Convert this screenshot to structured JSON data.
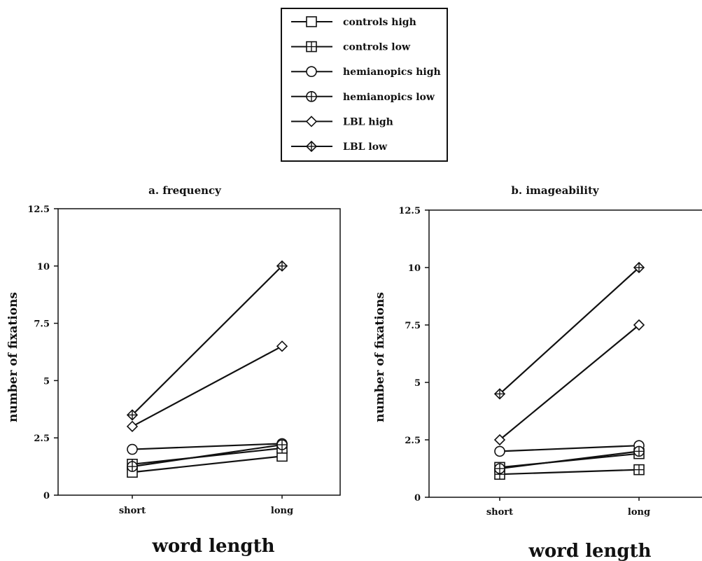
{
  "legend": [
    {
      "label": "controls high",
      "marker": "square",
      "cross": false
    },
    {
      "label": "controls low",
      "marker": "square",
      "cross": true
    },
    {
      "label": "hemianopics high",
      "marker": "circle",
      "cross": false
    },
    {
      "label": "hemianopics low",
      "marker": "circle",
      "cross": true
    },
    {
      "label": "LBL high",
      "marker": "diamond",
      "cross": false
    },
    {
      "label": "LBL low",
      "marker": "diamond",
      "cross": true
    }
  ],
  "chart_data": [
    {
      "type": "line",
      "title": "a. frequency",
      "xlabel": "word length",
      "ylabel": "number  of  fixations",
      "categories": [
        "short",
        "long"
      ],
      "ylim": [
        0,
        12.5
      ],
      "yticks": [
        "0",
        "2.5",
        "5",
        "7.5",
        "10",
        "12.5"
      ],
      "series": [
        {
          "name": "controls high",
          "values": [
            1.0,
            1.7
          ]
        },
        {
          "name": "controls low",
          "values": [
            1.35,
            2.05
          ]
        },
        {
          "name": "hemianopics high",
          "values": [
            2.0,
            2.25
          ]
        },
        {
          "name": "hemianopics low",
          "values": [
            1.25,
            2.2
          ]
        },
        {
          "name": "LBL high",
          "values": [
            3.0,
            6.5
          ]
        },
        {
          "name": "LBL low",
          "values": [
            3.5,
            10.0
          ]
        }
      ]
    },
    {
      "type": "line",
      "title": "b. imageability",
      "xlabel": "word length",
      "ylabel": "number  of  fixations",
      "categories": [
        "short",
        "long"
      ],
      "ylim": [
        0,
        12.5
      ],
      "yticks": [
        "0",
        "2.5",
        "5",
        "7.5",
        "10",
        "12.5"
      ],
      "series": [
        {
          "name": "controls high",
          "values": [
            1.3,
            1.9
          ]
        },
        {
          "name": "controls low",
          "values": [
            1.0,
            1.2
          ]
        },
        {
          "name": "hemianopics high",
          "values": [
            2.0,
            2.25
          ]
        },
        {
          "name": "hemianopics low",
          "values": [
            1.25,
            2.0
          ]
        },
        {
          "name": "LBL high",
          "values": [
            2.5,
            7.5
          ]
        },
        {
          "name": "LBL low",
          "values": [
            4.5,
            10.0
          ]
        }
      ]
    }
  ]
}
